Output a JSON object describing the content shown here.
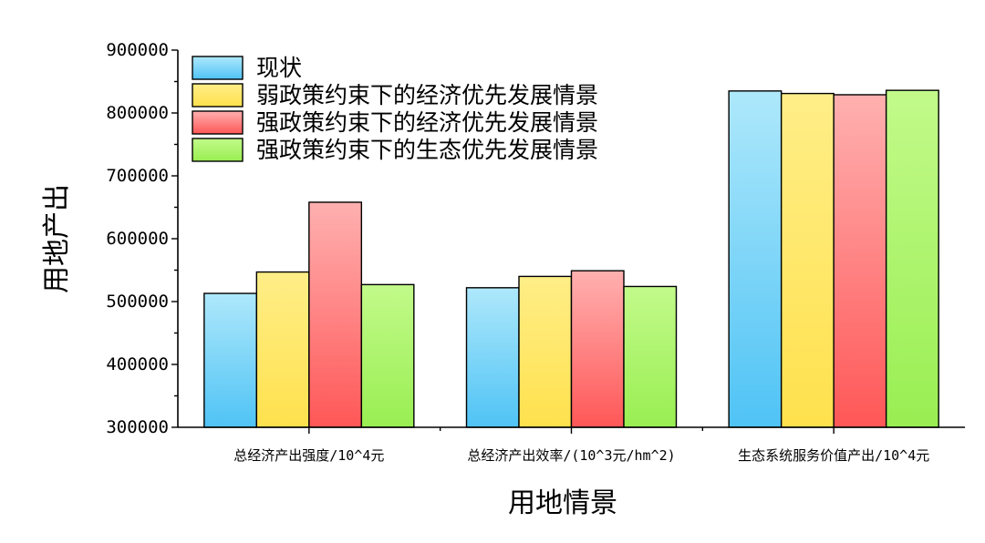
{
  "chart_data": {
    "type": "bar",
    "title": "",
    "xlabel": "用地情景",
    "ylabel": "用地产出",
    "ylim": [
      300000,
      900000
    ],
    "yticks": [
      300000,
      400000,
      500000,
      600000,
      700000,
      800000,
      900000
    ],
    "grid": false,
    "legend_position": "top-left",
    "categories": [
      "总经济产出强度/10^4元",
      "总经济产出效率/(10^3元/hm^2)",
      "生态系统服务价值产出/10^4元"
    ],
    "series": [
      {
        "name": "现状",
        "color_top": "#aee8fb",
        "color_bottom": "#4fc3f5",
        "values": [
          513000,
          522000,
          835000
        ]
      },
      {
        "name": "弱政策约束下的经济优先发展情景",
        "color_top": "#ffee88",
        "color_bottom": "#ffe14d",
        "values": [
          547000,
          540000,
          831000
        ]
      },
      {
        "name": "强政策约束下的经济优先发展情景",
        "color_top": "#ffb0b0",
        "color_bottom": "#ff5757",
        "values": [
          658000,
          549000,
          829000
        ]
      },
      {
        "name": "强政策约束下的生态优先发展情景",
        "color_top": "#c2fa8a",
        "color_bottom": "#99ee52",
        "values": [
          527000,
          524000,
          836000
        ]
      }
    ]
  }
}
